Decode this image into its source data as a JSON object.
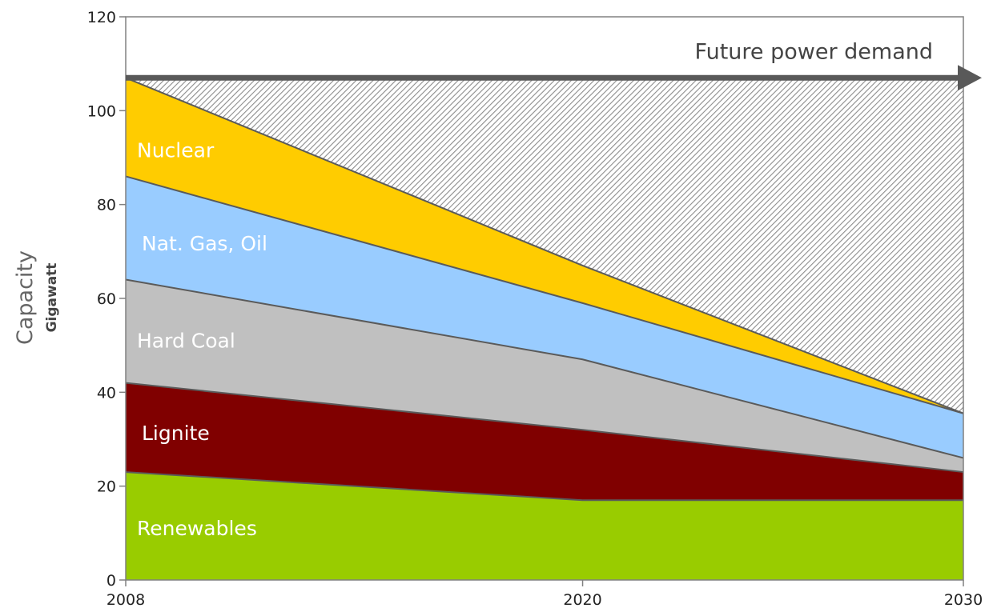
{
  "chart_data": {
    "type": "area",
    "stacked": true,
    "x": [
      2008,
      2020,
      2030
    ],
    "x_tick_labels": [
      "2008",
      "2020",
      "2030"
    ],
    "ylim": [
      0,
      120
    ],
    "y_ticks": [
      0,
      20,
      40,
      60,
      80,
      100,
      120
    ],
    "ylabel": "Capacity",
    "ylabel_unit": "Gigawatt",
    "series": [
      {
        "name": "Renewables",
        "values": [
          23,
          17,
          17
        ],
        "color": "#99cc00",
        "label_color": "#ffffff"
      },
      {
        "name": "Lignite",
        "values": [
          19,
          15,
          6
        ],
        "color": "#800000",
        "label_color": "#ffffff"
      },
      {
        "name": "Hard Coal",
        "values": [
          22,
          15,
          3
        ],
        "color": "#c0c0c0",
        "label_color": "#ffffff"
      },
      {
        "name": "Nat. Gas, Oil",
        "values": [
          22,
          12,
          9.5
        ],
        "color": "#99ccff",
        "label_color": "#ffffff"
      },
      {
        "name": "Nuclear",
        "values": [
          21,
          8,
          0
        ],
        "color": "#ffcc00",
        "label_color": "#ffffff"
      }
    ],
    "gap_area": {
      "pattern": "diagonal-hatch",
      "color": "#999999"
    },
    "demand": {
      "label": "Future power demand",
      "value": 107,
      "color": "#595959"
    },
    "grid": false
  }
}
